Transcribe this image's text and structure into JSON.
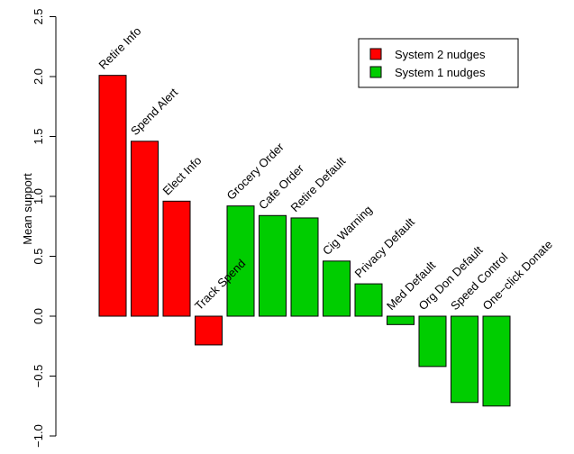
{
  "chart_data": {
    "type": "bar",
    "title": "",
    "xlabel": "",
    "ylabel": "Mean support",
    "ylim": [
      -1.0,
      2.5
    ],
    "yticks": [
      "-1.0",
      "-0.5",
      "0.0",
      "0.5",
      "1.0",
      "1.5",
      "2.0",
      "2.5"
    ],
    "grid": false,
    "legend_position": "top-right",
    "categories": [
      "Retire Info",
      "Spend Alert",
      "Elect Info",
      "Track Spend",
      "Grocery Order",
      "Cafe Order",
      "Retire Default",
      "Cig Warning",
      "Privacy Default",
      "Med Default",
      "Org Don Default",
      "Speed Control",
      "One−click Donate"
    ],
    "values": [
      2.01,
      1.46,
      0.96,
      -0.24,
      0.92,
      0.84,
      0.82,
      0.46,
      0.27,
      -0.07,
      -0.42,
      -0.72,
      -0.75
    ],
    "groups": [
      "System 2 nudges",
      "System 2 nudges",
      "System 2 nudges",
      "System 2 nudges",
      "System 1 nudges",
      "System 1 nudges",
      "System 1 nudges",
      "System 1 nudges",
      "System 1 nudges",
      "System 1 nudges",
      "System 1 nudges",
      "System 1 nudges",
      "System 1 nudges"
    ],
    "legend": [
      {
        "name": "System 2 nudges",
        "color": "#ff0000"
      },
      {
        "name": "System 1 nudges",
        "color": "#00cd00"
      }
    ]
  }
}
